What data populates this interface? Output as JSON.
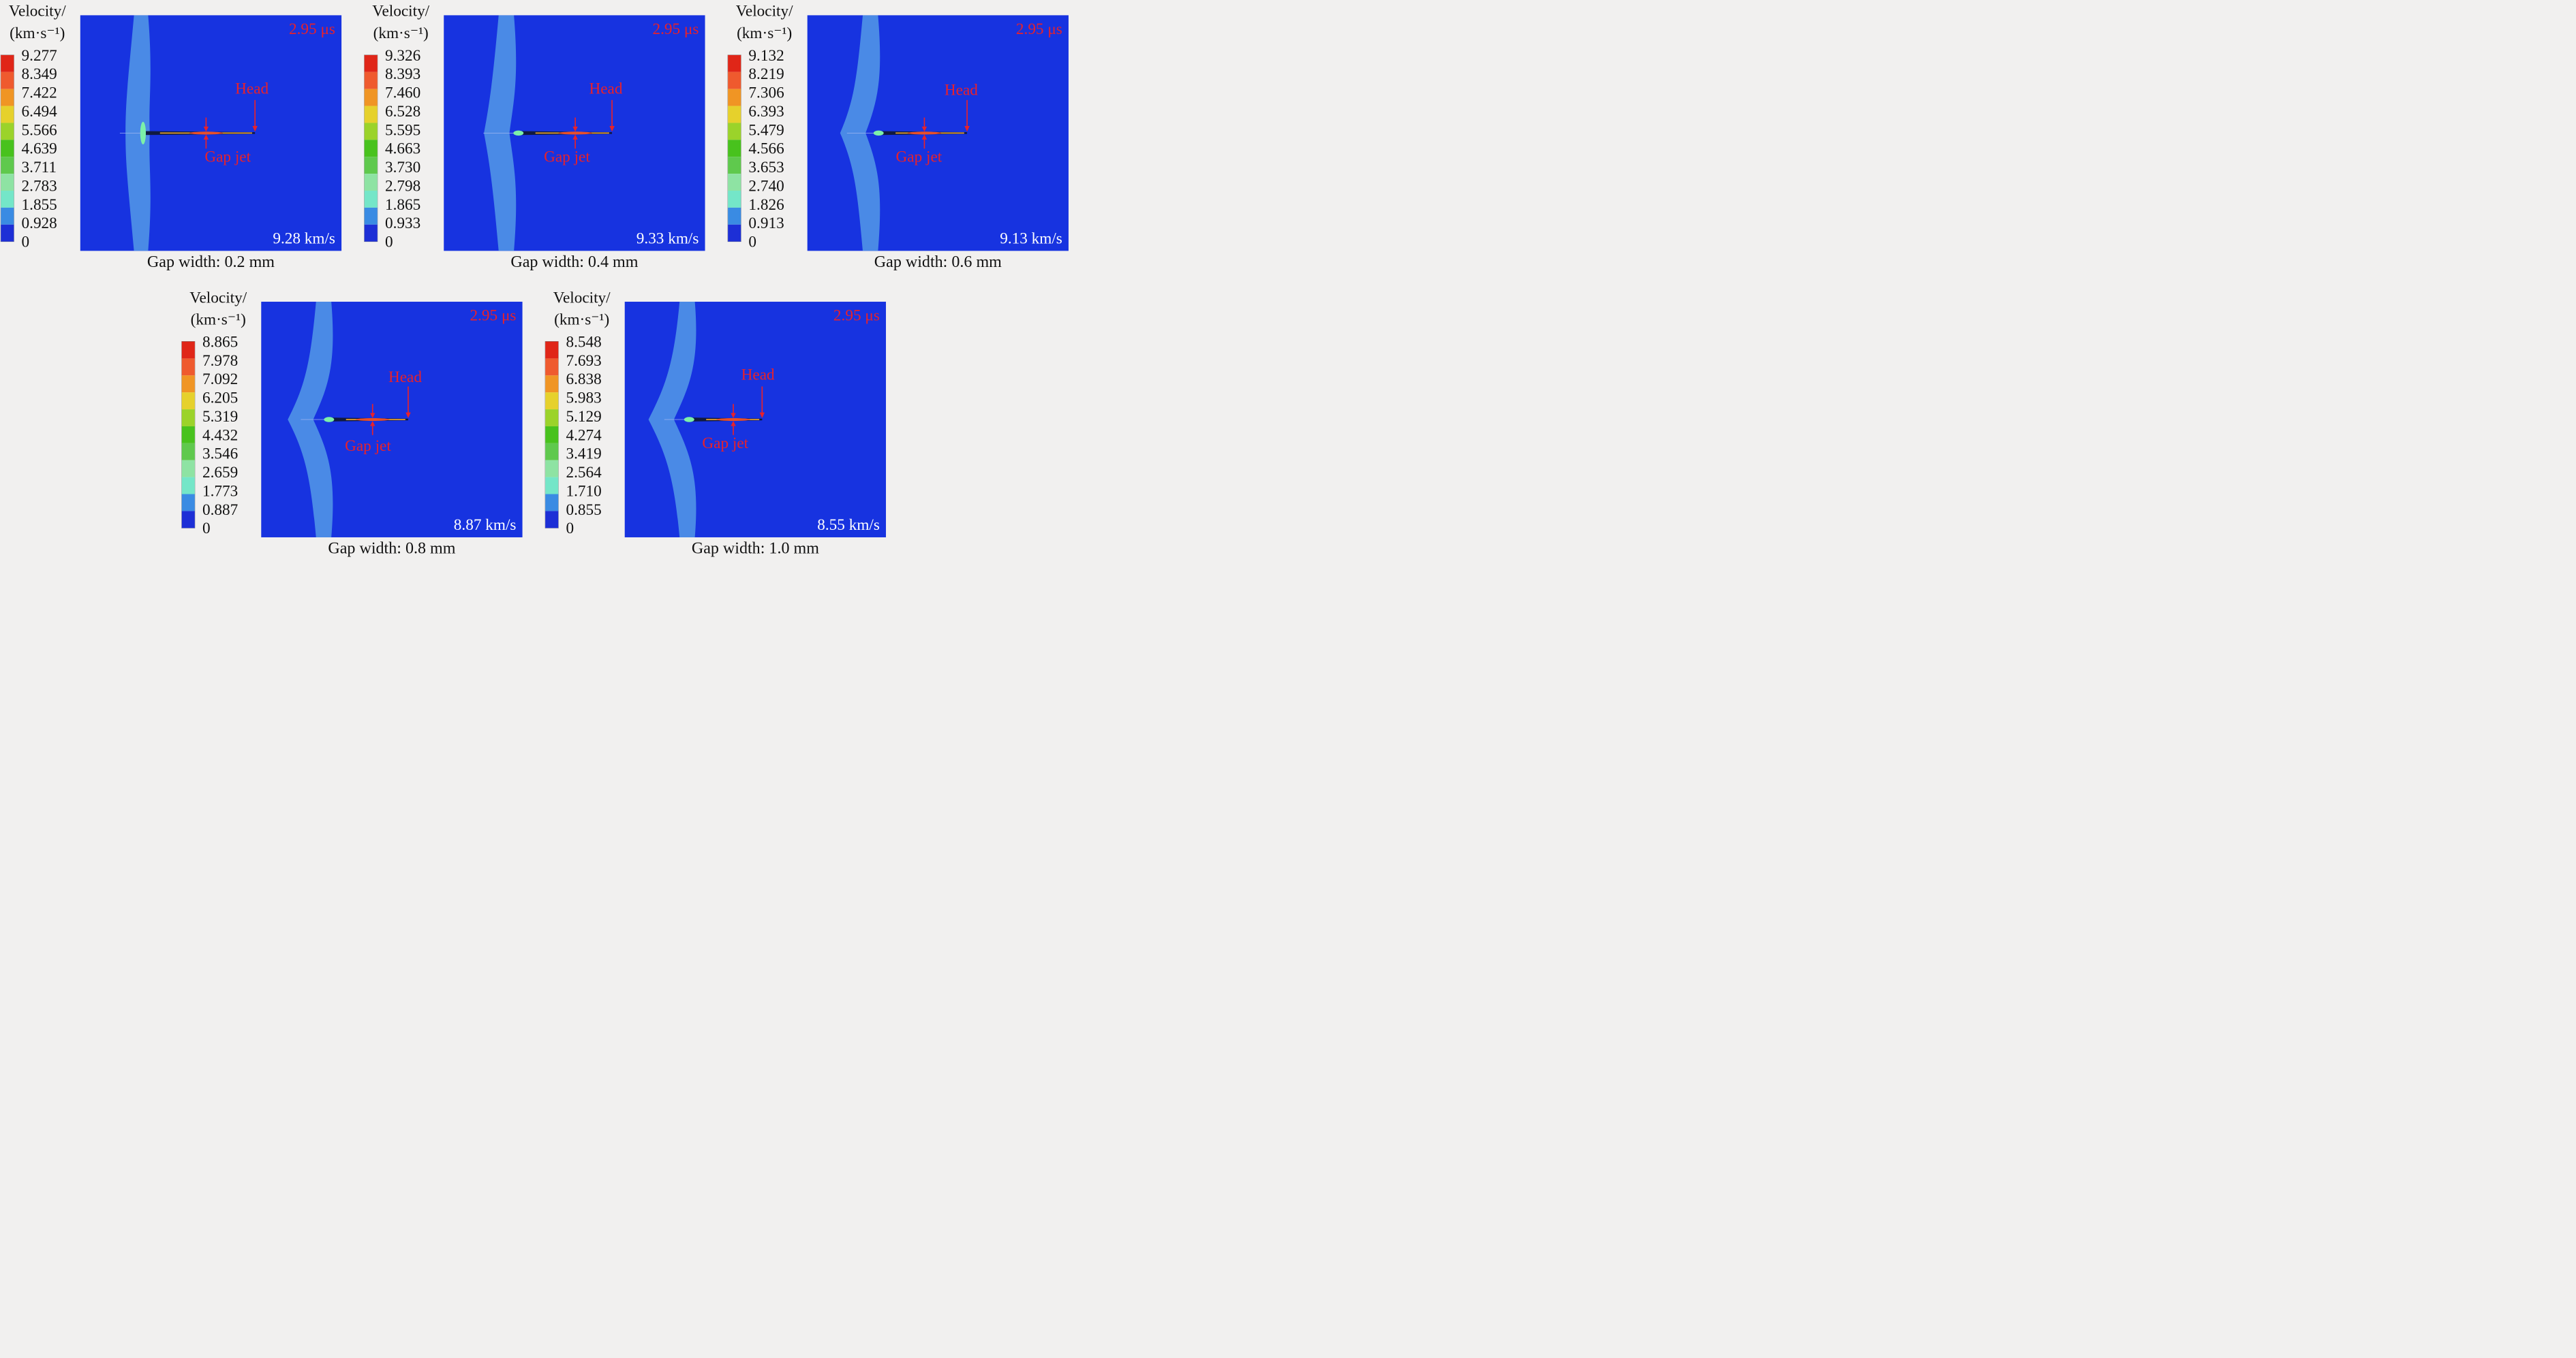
{
  "legend_title_line1": "Velocity/",
  "legend_title_line2": "(km·s⁻¹)",
  "time_label": "2.95 μs",
  "head_label": "Head",
  "gap_jet_label": "Gap jet",
  "colors": {
    "background_field": "#1733e0",
    "shock_band": "#4a8ae6",
    "annotation": "#e8212b",
    "scale": [
      "#e02618",
      "#ef5a2e",
      "#f09524",
      "#e6d12c",
      "#9bd32a",
      "#48c21d",
      "#5fc94d",
      "#8ee3a3",
      "#74e6c8",
      "#3a8be3",
      "#1d2fd6"
    ]
  },
  "panels": [
    {
      "caption": "Gap width: 0.2 mm",
      "speed": "9.28 km/s",
      "ticks": [
        "9.277",
        "8.349",
        "7.422",
        "6.494",
        "5.566",
        "4.639",
        "3.711",
        "2.783",
        "1.855",
        "0.928",
        "0"
      ]
    },
    {
      "caption": "Gap width: 0.4 mm",
      "speed": "9.33 km/s",
      "ticks": [
        "9.326",
        "8.393",
        "7.460",
        "6.528",
        "5.595",
        "4.663",
        "3.730",
        "2.798",
        "1.865",
        "0.933",
        "0"
      ]
    },
    {
      "caption": "Gap width: 0.6 mm",
      "speed": "9.13 km/s",
      "ticks": [
        "9.132",
        "8.219",
        "7.306",
        "6.393",
        "5.479",
        "4.566",
        "3.653",
        "2.740",
        "1.826",
        "0.913",
        "0"
      ]
    },
    {
      "caption": "Gap width: 0.8 mm",
      "speed": "8.87 km/s",
      "ticks": [
        "8.865",
        "7.978",
        "7.092",
        "6.205",
        "5.319",
        "4.432",
        "3.546",
        "2.659",
        "1.773",
        "0.887",
        "0"
      ]
    },
    {
      "caption": "Gap width: 1.0 mm",
      "speed": "8.55 km/s",
      "ticks": [
        "8.548",
        "7.693",
        "6.838",
        "5.983",
        "5.129",
        "4.274",
        "3.419",
        "2.564",
        "1.710",
        "0.855",
        "0"
      ]
    }
  ]
}
